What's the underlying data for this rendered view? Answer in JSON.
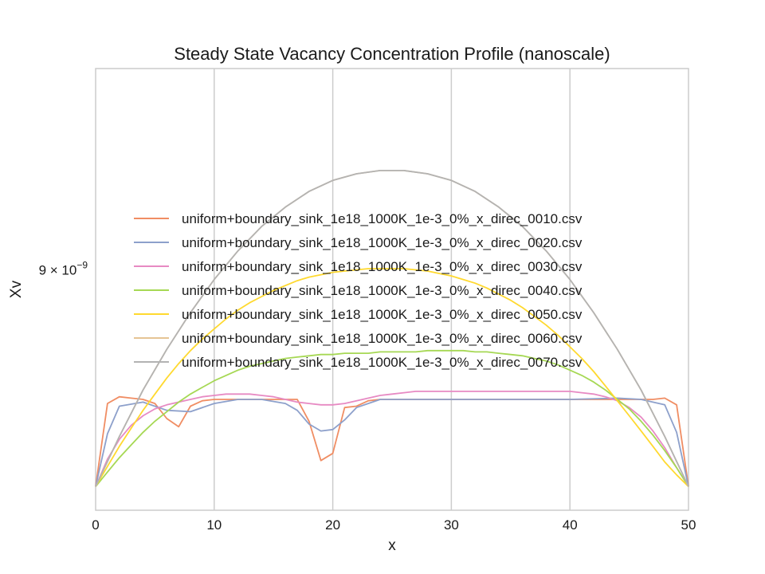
{
  "chart_data": {
    "type": "line",
    "title": "Steady State Vacancy Concentration Profile (nanoscale)",
    "xlabel": "x",
    "ylabel": "Xv",
    "xlim": [
      0,
      50
    ],
    "ylim": [
      7.2e-09,
      1.085e-08
    ],
    "y_scale": "log",
    "x_ticks": [
      0,
      10,
      20,
      30,
      40,
      50
    ],
    "x_tick_labels": [
      "0",
      "10",
      "20",
      "30",
      "40",
      "50"
    ],
    "y_ticks": [
      9e-09
    ],
    "y_tick_labels": [
      {
        "base": "9 × 10",
        "exp": "−9"
      }
    ],
    "grid": true,
    "legend_position": "center-right",
    "series": [
      {
        "name": "uniform+boundary_sink_1e18_1000K_1e-3_0%_x_direc_0010.csv",
        "color": "#f08d63",
        "x": [
          0,
          1,
          2,
          3,
          4,
          5,
          6,
          7,
          8,
          9,
          10,
          11,
          12,
          13,
          14,
          15,
          16,
          17,
          18,
          19,
          20,
          21,
          22,
          23,
          24,
          25,
          26,
          27,
          28,
          29,
          30,
          31,
          32,
          33,
          34,
          35,
          36,
          37,
          38,
          39,
          40,
          41,
          42,
          43,
          44,
          45,
          46,
          47,
          48,
          49,
          50
        ],
        "y": [
          7.36e-09,
          7.95e-09,
          8e-09,
          7.99e-09,
          7.98e-09,
          7.95e-09,
          7.84e-09,
          7.78e-09,
          7.93e-09,
          7.97e-09,
          7.98e-09,
          7.98e-09,
          7.98e-09,
          7.98e-09,
          7.98e-09,
          7.98e-09,
          7.98e-09,
          7.98e-09,
          7.82e-09,
          7.54e-09,
          7.59e-09,
          7.92e-09,
          7.93e-09,
          7.97e-09,
          7.98e-09,
          7.98e-09,
          7.98e-09,
          7.98e-09,
          7.98e-09,
          7.98e-09,
          7.98e-09,
          7.98e-09,
          7.98e-09,
          7.98e-09,
          7.98e-09,
          7.98e-09,
          7.98e-09,
          7.98e-09,
          7.98e-09,
          7.98e-09,
          7.98e-09,
          7.98e-09,
          7.98e-09,
          7.98e-09,
          7.98e-09,
          7.98e-09,
          7.98e-09,
          7.98e-09,
          7.99e-09,
          7.94e-09,
          7.36e-09
        ]
      },
      {
        "name": "uniform+boundary_sink_1e18_1000K_1e-3_0%_x_direc_0020.csv",
        "color": "#8da0cb",
        "x": [
          0,
          1,
          2,
          4,
          6,
          8,
          10,
          12,
          14,
          16,
          17,
          18,
          19,
          20,
          21,
          22,
          24,
          26,
          30,
          40,
          44,
          46,
          48,
          49,
          50
        ],
        "y": [
          7.36e-09,
          7.73e-09,
          7.93e-09,
          7.96e-09,
          7.9e-09,
          7.89e-09,
          7.95e-09,
          7.98e-09,
          7.98e-09,
          7.95e-09,
          7.9e-09,
          7.8e-09,
          7.75e-09,
          7.76e-09,
          7.83e-09,
          7.92e-09,
          7.98e-09,
          7.98e-09,
          7.98e-09,
          7.98e-09,
          7.99e-09,
          7.98e-09,
          7.94e-09,
          7.74e-09,
          7.36e-09
        ]
      },
      {
        "name": "uniform+boundary_sink_1e18_1000K_1e-3_0%_x_direc_0030.csv",
        "color": "#e78ac3",
        "x": [
          0,
          1,
          2,
          3,
          4,
          5,
          6,
          7,
          8,
          9,
          10,
          11,
          12,
          13,
          14,
          15,
          16,
          17,
          18,
          19,
          20,
          21,
          22,
          23,
          24,
          25,
          26,
          27,
          28,
          29,
          30,
          31,
          32,
          33,
          34,
          35,
          36,
          37,
          38,
          39,
          40,
          41,
          42,
          43,
          44,
          45,
          46,
          47,
          48,
          49,
          50
        ],
        "y": [
          7.36e-09,
          7.55e-09,
          7.69e-09,
          7.79e-09,
          7.86e-09,
          7.91e-09,
          7.94e-09,
          7.96e-09,
          7.98e-09,
          8e-09,
          8.01e-09,
          8.02e-09,
          8.02e-09,
          8.02e-09,
          8.01e-09,
          8e-09,
          7.98e-09,
          7.96e-09,
          7.95e-09,
          7.94e-09,
          7.94e-09,
          7.95e-09,
          7.97e-09,
          7.99e-09,
          8.01e-09,
          8.02e-09,
          8.03e-09,
          8.04e-09,
          8.04e-09,
          8.04e-09,
          8.04e-09,
          8.04e-09,
          8.04e-09,
          8.04e-09,
          8.04e-09,
          8.04e-09,
          8.04e-09,
          8.04e-09,
          8.04e-09,
          8.04e-09,
          8.04e-09,
          8.03e-09,
          8.02e-09,
          8e-09,
          7.97e-09,
          7.92e-09,
          7.85e-09,
          7.75e-09,
          7.63e-09,
          7.49e-09,
          7.36e-09
        ]
      },
      {
        "name": "uniform+boundary_sink_1e18_1000K_1e-3_0%_x_direc_0040.csv",
        "color": "#a6d854",
        "x": [
          0,
          1,
          2,
          3,
          4,
          5,
          6,
          7,
          8,
          9,
          10,
          11,
          12,
          13,
          14,
          15,
          16,
          17,
          18,
          19,
          20,
          21,
          22,
          23,
          24,
          25,
          26,
          27,
          28,
          29,
          30,
          31,
          32,
          33,
          34,
          35,
          36,
          37,
          38,
          39,
          40,
          41,
          42,
          43,
          44,
          45,
          46,
          47,
          48,
          49,
          50
        ],
        "y": [
          7.36e-09,
          7.46e-09,
          7.56e-09,
          7.65e-09,
          7.74e-09,
          7.82e-09,
          7.89e-09,
          7.96e-09,
          8.02e-09,
          8.07e-09,
          8.12e-09,
          8.16e-09,
          8.2e-09,
          8.23e-09,
          8.25e-09,
          8.27e-09,
          8.29e-09,
          8.3e-09,
          8.31e-09,
          8.32e-09,
          8.32e-09,
          8.33e-09,
          8.33e-09,
          8.33e-09,
          8.34e-09,
          8.34e-09,
          8.34e-09,
          8.34e-09,
          8.35e-09,
          8.35e-09,
          8.35e-09,
          8.35e-09,
          8.34e-09,
          8.34e-09,
          8.33e-09,
          8.32e-09,
          8.31e-09,
          8.29e-09,
          8.27e-09,
          8.24e-09,
          8.2e-09,
          8.16e-09,
          8.11e-09,
          8.05e-09,
          7.98e-09,
          7.91e-09,
          7.82e-09,
          7.72e-09,
          7.61e-09,
          7.49e-09,
          7.36e-09
        ]
      },
      {
        "name": "uniform+boundary_sink_1e18_1000K_1e-3_0%_x_direc_0050.csv",
        "color": "#ffd92f",
        "x": [
          0,
          1,
          2,
          3,
          4,
          5,
          6,
          7,
          8,
          9,
          10,
          11,
          12,
          13,
          14,
          15,
          16,
          17,
          18,
          19,
          20,
          21,
          22,
          23,
          24,
          25,
          26,
          27,
          28,
          29,
          30,
          31,
          32,
          33,
          34,
          35,
          36,
          37,
          38,
          39,
          40,
          41,
          42,
          43,
          44,
          45,
          46,
          47,
          48,
          49,
          50
        ],
        "y": [
          7.36e-09,
          7.5e-09,
          7.64e-09,
          7.77e-09,
          7.9e-09,
          8.02e-09,
          8.14e-09,
          8.25e-09,
          8.35e-09,
          8.44e-09,
          8.52e-09,
          8.6e-09,
          8.67e-09,
          8.73e-09,
          8.78e-09,
          8.83e-09,
          8.87e-09,
          8.91e-09,
          8.94e-09,
          8.96e-09,
          8.98e-09,
          8.99e-09,
          9e-09,
          9.01e-09,
          9.01e-09,
          9.01e-09,
          9.01e-09,
          9e-09,
          8.99e-09,
          8.97e-09,
          8.95e-09,
          8.92e-09,
          8.89e-09,
          8.85e-09,
          8.8e-09,
          8.75e-09,
          8.69e-09,
          8.62e-09,
          8.55e-09,
          8.47e-09,
          8.38e-09,
          8.29e-09,
          8.19e-09,
          8.08e-09,
          7.97e-09,
          7.86e-09,
          7.75e-09,
          7.64e-09,
          7.53e-09,
          7.44e-09,
          7.36e-09
        ]
      },
      {
        "name": "uniform+boundary_sink_1e18_1000K_1e-3_0%_x_direc_0060.csv",
        "color": "#e5c494",
        "x": [
          0,
          2,
          4,
          6,
          8,
          10,
          12,
          14,
          16,
          18,
          20,
          22,
          24,
          25,
          26,
          28,
          30,
          32,
          34,
          36,
          38,
          40,
          42,
          44,
          46,
          48,
          50
        ],
        "y": [
          7.36e-09,
          7.71e-09,
          8.05e-09,
          8.36e-09,
          8.65e-09,
          8.92e-09,
          9.16e-09,
          9.37e-09,
          9.54e-09,
          9.68e-09,
          9.78e-09,
          9.84e-09,
          9.87e-09,
          9.87e-09,
          9.87e-09,
          9.84e-09,
          9.78e-09,
          9.68e-09,
          9.54e-09,
          9.37e-09,
          9.16e-09,
          8.92e-09,
          8.65e-09,
          8.36e-09,
          8.05e-09,
          7.71e-09,
          7.36e-09
        ]
      },
      {
        "name": "uniform+boundary_sink_1e18_1000K_1e-3_0%_x_direc_0070.csv",
        "color": "#b3b3b3",
        "x": [
          0,
          2,
          4,
          6,
          8,
          10,
          12,
          14,
          16,
          18,
          20,
          22,
          24,
          25,
          26,
          28,
          30,
          32,
          34,
          36,
          38,
          40,
          42,
          44,
          46,
          48,
          50
        ],
        "y": [
          7.36e-09,
          7.71e-09,
          8.05e-09,
          8.36e-09,
          8.65e-09,
          8.92e-09,
          9.16e-09,
          9.37e-09,
          9.54e-09,
          9.68e-09,
          9.78e-09,
          9.84e-09,
          9.87e-09,
          9.87e-09,
          9.87e-09,
          9.84e-09,
          9.78e-09,
          9.68e-09,
          9.54e-09,
          9.37e-09,
          9.16e-09,
          8.92e-09,
          8.65e-09,
          8.36e-09,
          8.05e-09,
          7.71e-09,
          7.36e-09
        ]
      }
    ]
  }
}
